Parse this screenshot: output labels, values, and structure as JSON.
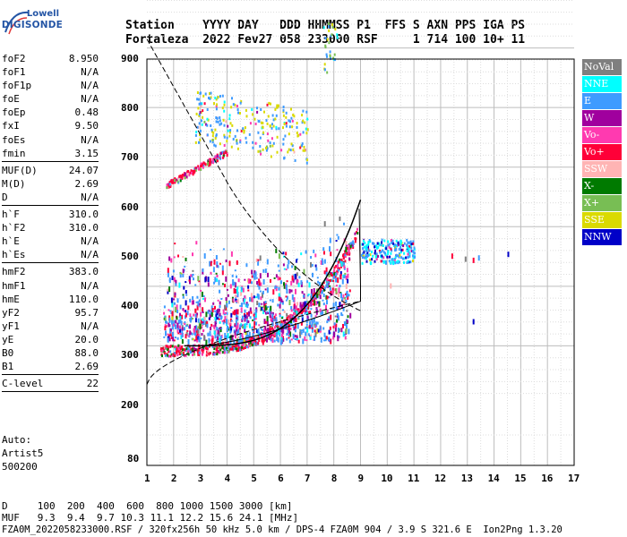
{
  "logo": {
    "top": "Lowell",
    "bottom": "DIGISONDE"
  },
  "header": {
    "line1": "Station    YYYY DAY   DDD HHMMSS P1  FFS S AXN PPS IGA PS",
    "line2": "Fortaleza  2022 Fev27 058 233000 RSF     1 714 100 10+ 11"
  },
  "params": [
    {
      "label": "foF2",
      "value": "8.950"
    },
    {
      "label": "foF1",
      "value": "N/A"
    },
    {
      "label": "foF1p",
      "value": "N/A"
    },
    {
      "label": "foE",
      "value": "N/A"
    },
    {
      "label": "foEp",
      "value": "0.48"
    },
    {
      "label": "fxI",
      "value": "9.50"
    },
    {
      "label": "foEs",
      "value": "N/A"
    },
    {
      "label": "fmin",
      "value": "3.15"
    },
    {
      "sep": true
    },
    {
      "label": "MUF(D)",
      "value": "24.07"
    },
    {
      "label": "M(D)",
      "value": "2.69"
    },
    {
      "label": "D",
      "value": "N/A"
    },
    {
      "sep": true
    },
    {
      "label": "h`F",
      "value": "310.0"
    },
    {
      "label": "h`F2",
      "value": "310.0"
    },
    {
      "label": "h`E",
      "value": "N/A"
    },
    {
      "label": "h`Es",
      "value": "N/A"
    },
    {
      "sep": true
    },
    {
      "label": "hmF2",
      "value": "383.0"
    },
    {
      "label": "hmF1",
      "value": "N/A"
    },
    {
      "label": "hmE",
      "value": "110.0"
    },
    {
      "label": "yF2",
      "value": "95.7"
    },
    {
      "label": "yF1",
      "value": "N/A"
    },
    {
      "label": "yE",
      "value": "20.0"
    },
    {
      "label": "B0",
      "value": "88.0"
    },
    {
      "label": "B1",
      "value": "2.69"
    },
    {
      "sep": true
    },
    {
      "label": "C-level",
      "value": "22"
    },
    {
      "sep": true
    }
  ],
  "auto": {
    "line1": "Auto:",
    "line2": "Artist5",
    "line3": "500200"
  },
  "legend": [
    {
      "label": "NoVal",
      "color": "#7f7f7f"
    },
    {
      "label": "NNE",
      "color": "#00ffff"
    },
    {
      "label": "E",
      "color": "#3e9bff"
    },
    {
      "label": "W",
      "color": "#a0009e"
    },
    {
      "label": "Vo-",
      "color": "#ff3ab0"
    },
    {
      "label": "Vo+",
      "color": "#ff0038"
    },
    {
      "label": "SSW",
      "color": "#ffb4b4"
    },
    {
      "label": "X-",
      "color": "#007a00"
    },
    {
      "label": "X+",
      "color": "#78be54"
    },
    {
      "label": "SSE",
      "color": "#dada00"
    },
    {
      "label": "NNW",
      "color": "#0000c8"
    }
  ],
  "axes": {
    "x_ticks": [
      "1",
      "2",
      "3",
      "4",
      "5",
      "6",
      "7",
      "8",
      "9",
      "10",
      "11",
      "12",
      "13",
      "14",
      "15",
      "16",
      "17"
    ],
    "y_ticks": [
      "900",
      "800",
      "700",
      "600",
      "500",
      "400",
      "300",
      "200",
      "80"
    ]
  },
  "footer": {
    "line1": "D     100  200  400  600  800 1000 1500 3000 [km]",
    "line2": "MUF   9.3  9.4  9.7 10.3 11.1 12.2 15.6 24.1 [MHz]",
    "line3": "FZA0M_2022058233000.RSF / 320fx256h 50 kHz 5.0 km / DPS-4 FZA0M 904 / 3.9 S 321.6 E  Ion2Png 1.3.20"
  }
}
